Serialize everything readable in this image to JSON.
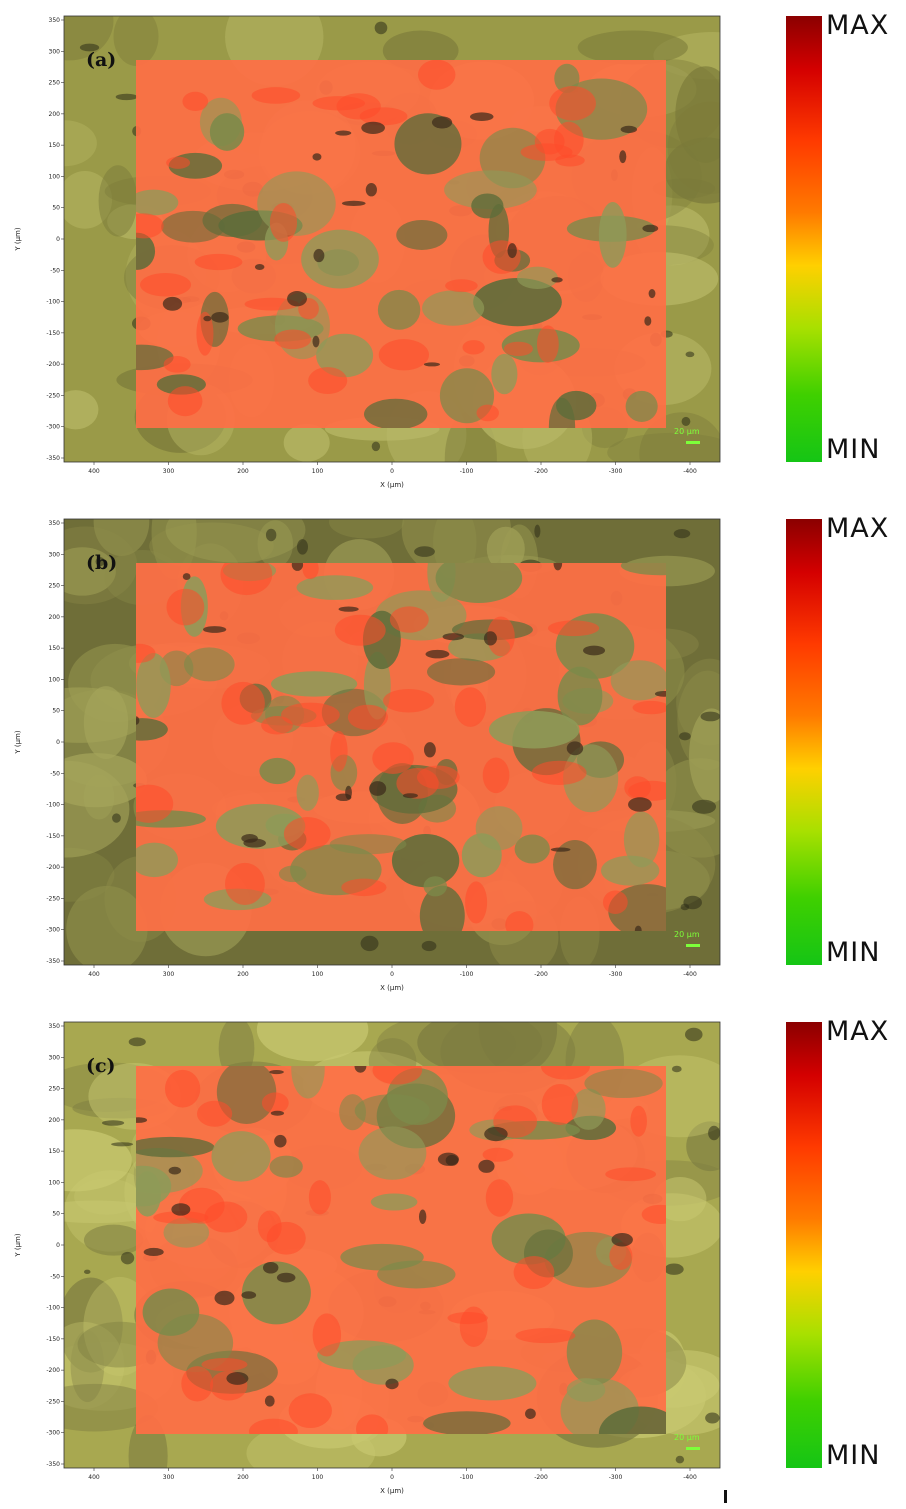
{
  "panels": [
    {
      "label": "(a)",
      "colorbar": {
        "max_label": "MAX",
        "min_label": "MIN"
      },
      "scale_bar_text": "20 µm",
      "x_axis_label": "X (µm)",
      "y_axis_label": "Y (µm)",
      "x_ticks": [
        "400",
        "300",
        "200",
        "100",
        "0",
        "-100",
        "-200",
        "-300",
        "-400"
      ],
      "y_ticks": [
        "350",
        "300",
        "250",
        "200",
        "150",
        "100",
        "50",
        "0",
        "-50",
        "-100",
        "-150",
        "-200",
        "-250",
        "-300",
        "-350"
      ]
    },
    {
      "label": "(b)",
      "colorbar": {
        "max_label": "MAX",
        "min_label": "MIN"
      },
      "scale_bar_text": "20 µm",
      "x_axis_label": "X (µm)",
      "y_axis_label": "Y (µm)",
      "x_ticks": [
        "400",
        "300",
        "200",
        "100",
        "0",
        "-100",
        "-200",
        "-300",
        "-400"
      ],
      "y_ticks": [
        "350",
        "300",
        "250",
        "200",
        "150",
        "100",
        "50",
        "0",
        "-50",
        "-100",
        "-150",
        "-200",
        "-250",
        "-300",
        "-350"
      ]
    },
    {
      "label": "(c)",
      "colorbar": {
        "max_label": "MAX",
        "min_label": "MIN"
      },
      "scale_bar_text": "20 µm",
      "x_axis_label": "X (µm)",
      "y_axis_label": "Y (µm)",
      "x_ticks": [
        "400",
        "300",
        "200",
        "100",
        "0",
        "-100",
        "-200",
        "-300",
        "-400"
      ],
      "y_ticks": [
        "350",
        "300",
        "250",
        "200",
        "150",
        "100",
        "50",
        "0",
        "-50",
        "-100",
        "-150",
        "-200",
        "-250",
        "-300",
        "-350"
      ]
    }
  ],
  "colors": {
    "colorbar_max": "#8b0000",
    "colorbar_mid": "#ffd000",
    "colorbar_min": "#15c515",
    "background_optical": "#8a8a3c",
    "raman_overlay": "#ff6a3a"
  }
}
